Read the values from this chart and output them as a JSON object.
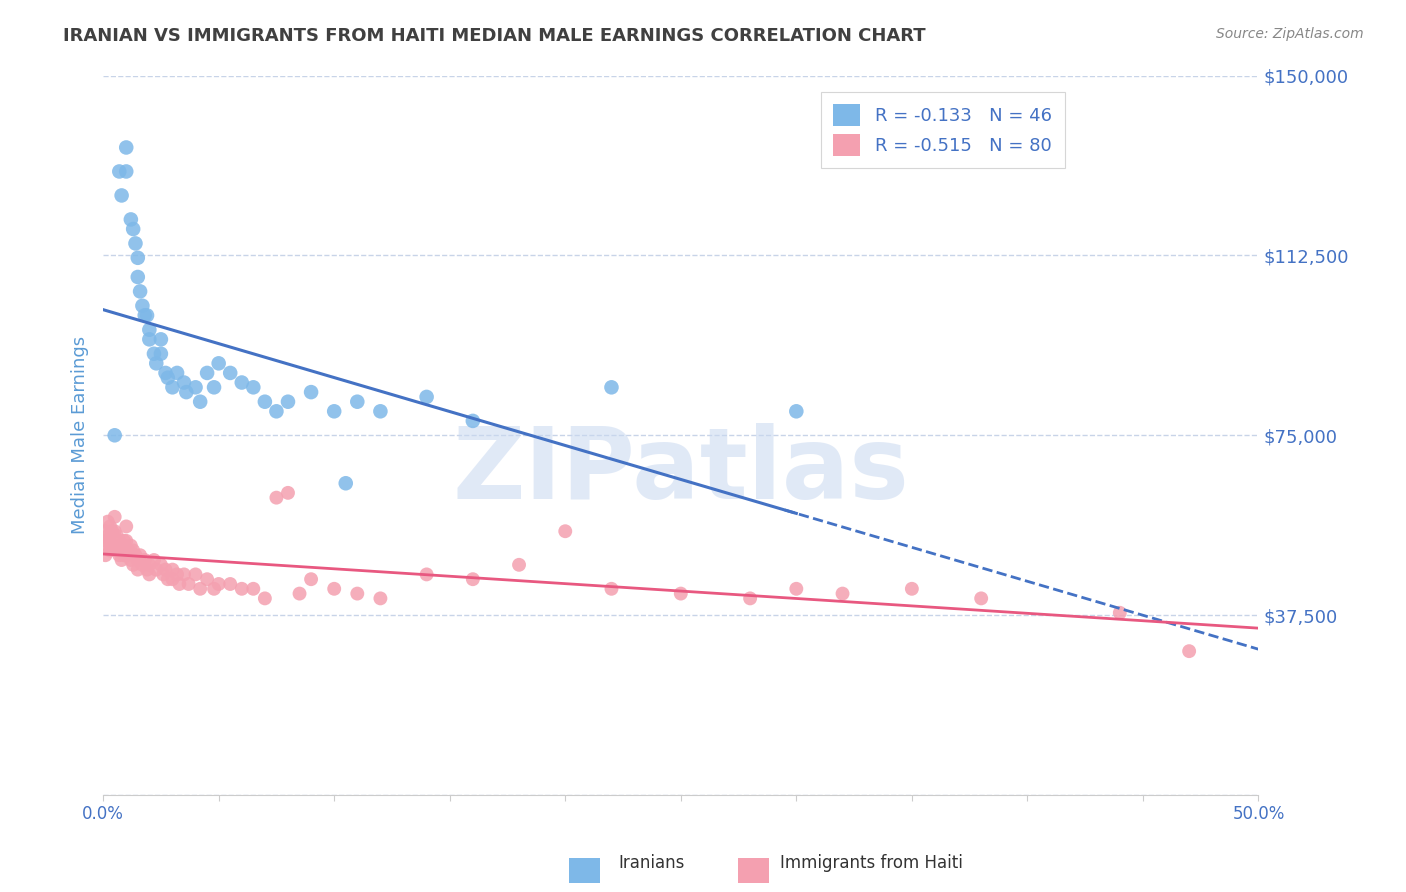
{
  "title": "IRANIAN VS IMMIGRANTS FROM HAITI MEDIAN MALE EARNINGS CORRELATION CHART",
  "source": "Source: ZipAtlas.com",
  "xlabel": "",
  "ylabel": "Median Male Earnings",
  "xlim": [
    0,
    0.5
  ],
  "ylim": [
    0,
    150000
  ],
  "yticks": [
    0,
    37500,
    75000,
    112500,
    150000
  ],
  "ytick_labels": [
    "",
    "$37,500",
    "$75,000",
    "$112,500",
    "$150,000"
  ],
  "xticks": [
    0.0,
    0.05,
    0.1,
    0.15,
    0.2,
    0.25,
    0.3,
    0.35,
    0.4,
    0.45,
    0.5
  ],
  "xtick_labels": [
    "0.0%",
    "",
    "",
    "",
    "",
    "",
    "",
    "",
    "",
    "",
    "50.0%"
  ],
  "legend_r1": "R = -0.133",
  "legend_n1": "N = 46",
  "legend_r2": "R = -0.515",
  "legend_n2": "N = 80",
  "color_iranian": "#7eb8e8",
  "color_haiti": "#f4a0b0",
  "color_line_iranian": "#4472c4",
  "color_line_haiti": "#e85880",
  "color_axis_labels": "#5b9bd5",
  "color_ytick_labels": "#4472c4",
  "color_title": "#404040",
  "background_color": "#ffffff",
  "grid_color": "#c8d4e8",
  "watermark_text": "ZIPatlas",
  "watermark_color": "#c8d8f0",
  "iranian_x": [
    0.005,
    0.007,
    0.008,
    0.01,
    0.01,
    0.012,
    0.013,
    0.014,
    0.015,
    0.015,
    0.016,
    0.017,
    0.018,
    0.019,
    0.02,
    0.02,
    0.022,
    0.023,
    0.025,
    0.025,
    0.027,
    0.028,
    0.03,
    0.032,
    0.035,
    0.036,
    0.04,
    0.042,
    0.045,
    0.048,
    0.05,
    0.055,
    0.06,
    0.065,
    0.07,
    0.075,
    0.08,
    0.09,
    0.1,
    0.105,
    0.11,
    0.12,
    0.14,
    0.16,
    0.22,
    0.3
  ],
  "iranian_y": [
    75000,
    130000,
    125000,
    135000,
    130000,
    120000,
    118000,
    115000,
    112000,
    108000,
    105000,
    102000,
    100000,
    100000,
    97000,
    95000,
    92000,
    90000,
    95000,
    92000,
    88000,
    87000,
    85000,
    88000,
    86000,
    84000,
    85000,
    82000,
    88000,
    85000,
    90000,
    88000,
    86000,
    85000,
    82000,
    80000,
    82000,
    84000,
    80000,
    65000,
    82000,
    80000,
    83000,
    78000,
    85000,
    80000
  ],
  "haiti_x": [
    0.001,
    0.001,
    0.001,
    0.002,
    0.002,
    0.002,
    0.003,
    0.003,
    0.003,
    0.004,
    0.004,
    0.005,
    0.005,
    0.005,
    0.006,
    0.006,
    0.007,
    0.007,
    0.008,
    0.008,
    0.009,
    0.009,
    0.01,
    0.01,
    0.01,
    0.011,
    0.012,
    0.012,
    0.013,
    0.013,
    0.014,
    0.015,
    0.015,
    0.016,
    0.017,
    0.018,
    0.019,
    0.02,
    0.02,
    0.022,
    0.023,
    0.025,
    0.026,
    0.027,
    0.028,
    0.03,
    0.03,
    0.032,
    0.033,
    0.035,
    0.037,
    0.04,
    0.042,
    0.045,
    0.048,
    0.05,
    0.055,
    0.06,
    0.065,
    0.07,
    0.075,
    0.08,
    0.085,
    0.09,
    0.1,
    0.11,
    0.12,
    0.14,
    0.16,
    0.18,
    0.2,
    0.22,
    0.25,
    0.28,
    0.3,
    0.32,
    0.35,
    0.38,
    0.44,
    0.47
  ],
  "haiti_y": [
    55000,
    53000,
    50000,
    57000,
    54000,
    52000,
    56000,
    53000,
    51000,
    55000,
    52000,
    58000,
    55000,
    52000,
    54000,
    51000,
    53000,
    50000,
    52000,
    49000,
    53000,
    50000,
    56000,
    53000,
    50000,
    51000,
    52000,
    49000,
    51000,
    48000,
    50000,
    49000,
    47000,
    50000,
    48000,
    49000,
    47000,
    48000,
    46000,
    49000,
    47000,
    48000,
    46000,
    47000,
    45000,
    47000,
    45000,
    46000,
    44000,
    46000,
    44000,
    46000,
    43000,
    45000,
    43000,
    44000,
    44000,
    43000,
    43000,
    41000,
    62000,
    63000,
    42000,
    45000,
    43000,
    42000,
    41000,
    46000,
    45000,
    48000,
    55000,
    43000,
    42000,
    41000,
    43000,
    42000,
    43000,
    41000,
    38000,
    30000
  ],
  "line_solid_end": 0.3,
  "line_dash_start": 0.295,
  "line_dash_end": 0.5
}
